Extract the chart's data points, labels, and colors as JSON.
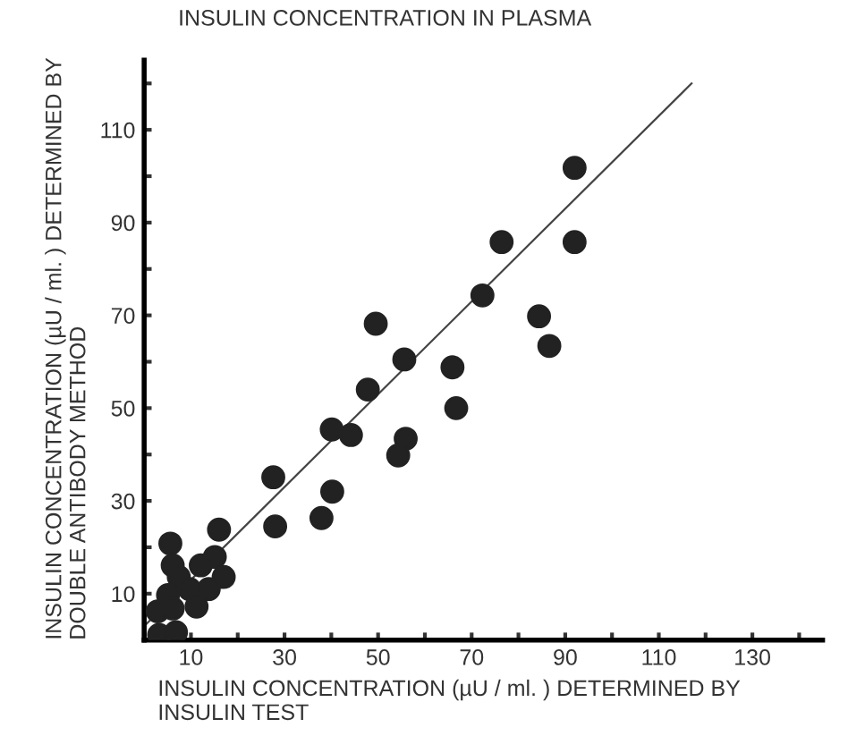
{
  "chart_data": {
    "type": "scatter",
    "title": "INSULIN CONCENTRATION IN PLASMA",
    "xlabel": "INSULIN CONCENTRATION (µU / ml. ) DETERMINED BY\nINSULIN TEST",
    "ylabel": "INSULIN CONCENTRATION (µU / ml. ) DETERMINED BY\nDOUBLE ANTIBODY METHOD",
    "series": [
      {
        "color": "#222222",
        "marker": "circle",
        "x": [
          92,
          92,
          76.4,
          72.3,
          84.4,
          86.6,
          49.5,
          55.6,
          65.9,
          66.7,
          47.8,
          40.1,
          44.2,
          55.9,
          54.3,
          27.6,
          40.2,
          37.9,
          28,
          16,
          5.6,
          15.1,
          12.1,
          6.1,
          7.4,
          17,
          9.7,
          13.8,
          5.1,
          11.2,
          2.9,
          3.2,
          6.8,
          6.1
        ],
        "values": [
          101.8,
          85.8,
          85.8,
          74.3,
          69.8,
          63.4,
          68.2,
          60.5,
          58.8,
          50,
          54,
          45.4,
          44.2,
          43.4,
          39.8,
          35.1,
          32,
          26.3,
          24.5,
          23.8,
          20.8,
          17.9,
          16.1,
          16.1,
          13.6,
          13.6,
          11,
          11,
          9.7,
          7.2,
          6.2,
          1.1,
          1.7,
          6.8
        ]
      },
      {
        "type": "line",
        "color": "#444444",
        "marker": "none",
        "line_style": "solid",
        "x": [
          0,
          117
        ],
        "values": [
          3,
          120
        ]
      }
    ],
    "xlim": [
      0,
      145
    ],
    "ylim": [
      0,
      125
    ],
    "xticks": [
      10,
      {
        "value": 20,
        "label": null
      },
      30,
      {
        "value": 40,
        "label": null
      },
      50,
      {
        "value": 60,
        "label": null
      },
      70,
      {
        "value": 80,
        "label": null
      },
      90,
      {
        "value": 100,
        "label": null
      },
      110,
      {
        "value": 120,
        "label": null
      },
      130,
      {
        "value": 140,
        "label": null
      }
    ],
    "yticks": [
      10,
      {
        "value": 20,
        "label": null
      },
      30,
      {
        "value": 40,
        "label": null
      },
      50,
      {
        "value": 60,
        "label": null
      },
      70,
      {
        "value": 80,
        "label": null
      },
      90,
      {
        "value": 100,
        "label": null
      },
      110,
      {
        "value": 120,
        "label": null
      }
    ],
    "grid": false,
    "legend": false
  }
}
